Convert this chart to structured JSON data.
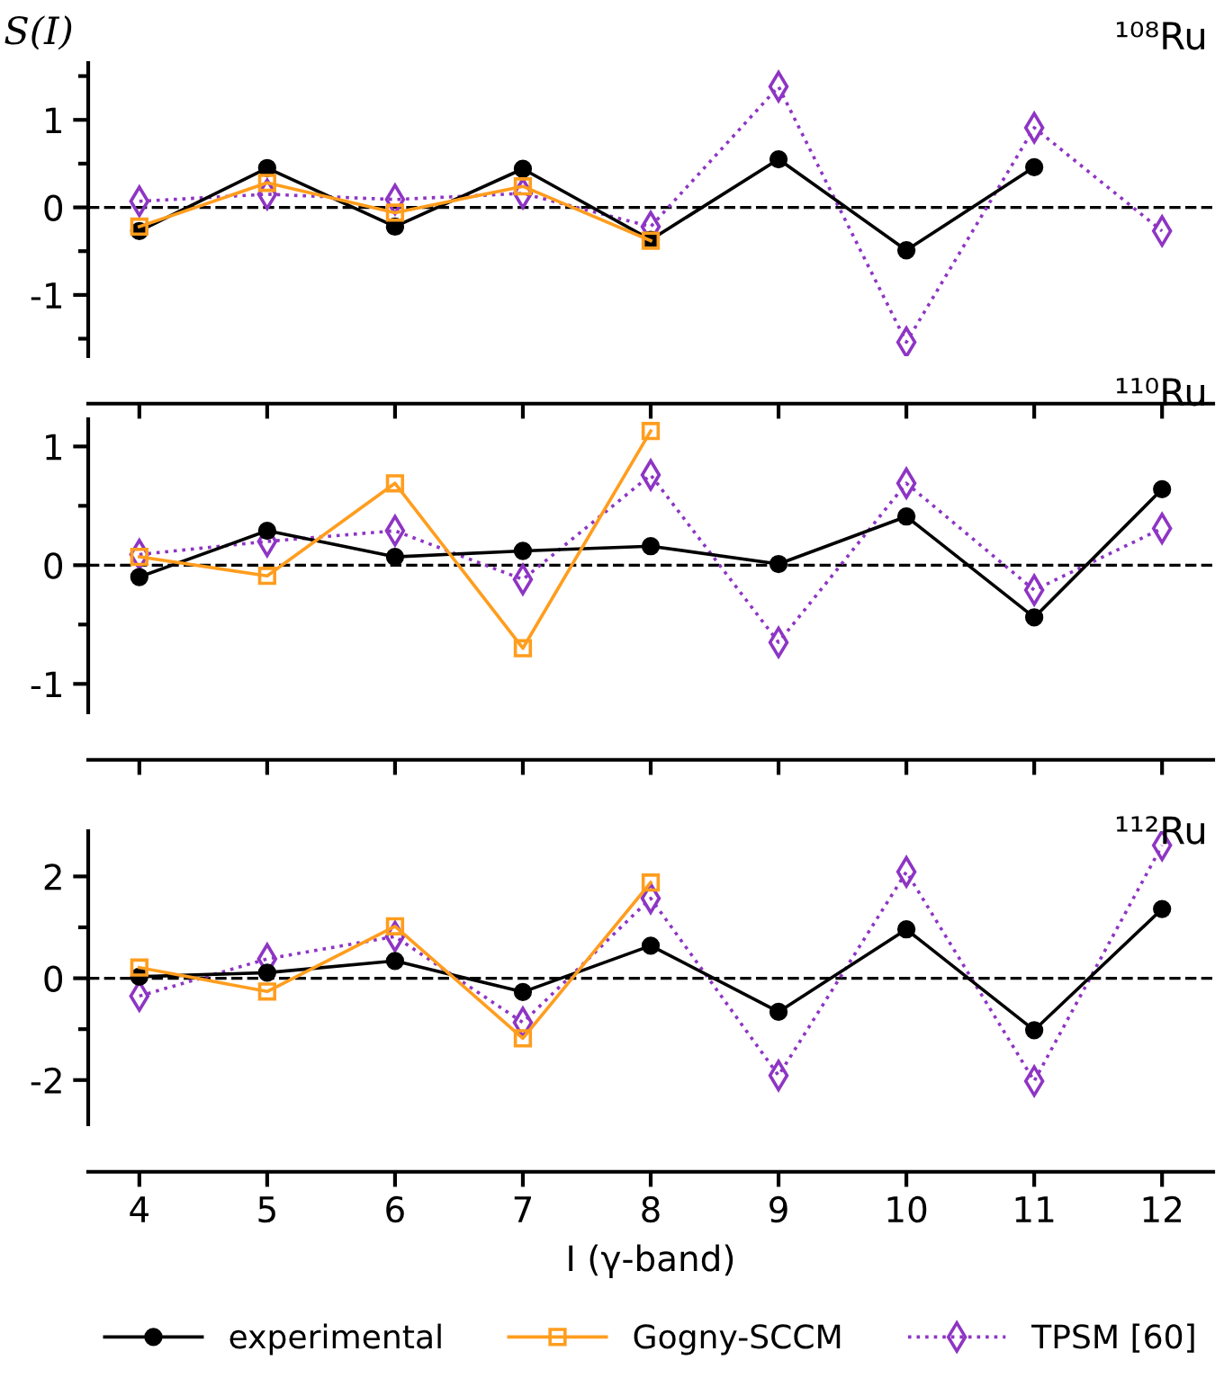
{
  "chart_data": [
    {
      "type": "line",
      "ylabel": "S(I)",
      "annotations": [
        "¹⁰⁸Ru"
      ],
      "x": [
        4,
        5,
        6,
        7,
        8,
        9,
        10,
        11,
        12
      ],
      "xlim": [
        3.6,
        12.4
      ],
      "xticks": [
        4,
        5,
        6,
        7,
        8,
        9,
        10,
        11,
        12
      ],
      "ylim": [
        -1.7,
        1.65
      ],
      "yticks": [
        {
          "value": -1.5,
          "label": null
        },
        -1,
        {
          "value": -0.5,
          "label": null
        },
        0,
        {
          "value": 0.5,
          "label": null
        },
        1,
        {
          "value": 1.5,
          "label": null
        }
      ],
      "tick_labels": "y",
      "grid": false,
      "legend": false,
      "ref_lines": [
        {
          "axis": "y",
          "value": 0,
          "color": "#000000",
          "line_style": "dashed"
        }
      ],
      "series": [
        {
          "color": "#000000",
          "marker": "circle",
          "line_style": "solid",
          "values": [
            -0.27,
            0.45,
            -0.22,
            0.44,
            -0.37,
            0.55,
            -0.49,
            0.46,
            null
          ]
        },
        {
          "color": "#ff9d1e",
          "marker": "square",
          "line_style": "solid",
          "values": [
            -0.22,
            0.28,
            -0.06,
            0.24,
            -0.38,
            null,
            null,
            null,
            null
          ]
        },
        {
          "color": "#8e35c4",
          "marker": "diamond",
          "line_style": "dotted",
          "values": [
            0.07,
            0.15,
            0.09,
            0.16,
            -0.22,
            1.38,
            -1.54,
            0.91,
            -0.27
          ]
        }
      ]
    },
    {
      "type": "line",
      "annotations": [
        "¹¹⁰Ru"
      ],
      "x": [
        4,
        5,
        6,
        7,
        8,
        9,
        10,
        11,
        12
      ],
      "xlim": [
        3.6,
        12.4
      ],
      "xticks": [
        4,
        5,
        6,
        7,
        8,
        9,
        10,
        11,
        12
      ],
      "ylim": [
        -1.24,
        1.23
      ],
      "yticks": [
        -1,
        {
          "value": -0.5,
          "label": null
        },
        0,
        {
          "value": 0.5,
          "label": null
        },
        1
      ],
      "tick_labels": "y",
      "grid": false,
      "legend": false,
      "ref_lines": [
        {
          "axis": "y",
          "value": 0,
          "color": "#000000",
          "line_style": "dashed"
        }
      ],
      "series": [
        {
          "color": "#000000",
          "marker": "circle",
          "line_style": "solid",
          "values": [
            -0.1,
            0.29,
            0.07,
            0.12,
            0.16,
            0.01,
            0.41,
            -0.44,
            0.64
          ]
        },
        {
          "color": "#ff9d1e",
          "marker": "square",
          "line_style": "solid",
          "values": [
            0.07,
            -0.09,
            0.69,
            -0.7,
            1.13,
            null,
            null,
            null,
            null
          ]
        },
        {
          "color": "#8e35c4",
          "marker": "diamond",
          "line_style": "dotted",
          "values": [
            0.09,
            0.2,
            0.29,
            -0.12,
            0.76,
            -0.65,
            0.69,
            -0.21,
            0.31
          ]
        }
      ]
    },
    {
      "type": "line",
      "xlabel": "I (γ-band)",
      "annotations": [
        "¹¹²Ru"
      ],
      "x": [
        4,
        5,
        6,
        7,
        8,
        9,
        10,
        11,
        12
      ],
      "xlim": [
        3.6,
        12.4
      ],
      "xticks": [
        4,
        5,
        6,
        7,
        8,
        9,
        10,
        11,
        12
      ],
      "ylim": [
        -2.87,
        2.89
      ],
      "yticks": [
        -2,
        {
          "value": -1,
          "label": null
        },
        0,
        {
          "value": 1,
          "label": null
        },
        2
      ],
      "grid": false,
      "legend": "bottom",
      "ref_lines": [
        {
          "axis": "y",
          "value": 0,
          "color": "#000000",
          "line_style": "dashed"
        }
      ],
      "series": [
        {
          "name": "experimental",
          "color": "#000000",
          "marker": "circle",
          "line_style": "solid",
          "values": [
            0.03,
            0.11,
            0.34,
            -0.27,
            0.64,
            -0.66,
            0.96,
            -1.02,
            1.36
          ]
        },
        {
          "name": "Gogny-SCCM",
          "color": "#ff9d1e",
          "marker": "square",
          "line_style": "solid",
          "values": [
            0.21,
            -0.26,
            1.02,
            -1.18,
            1.88,
            null,
            null,
            null,
            null
          ]
        },
        {
          "name": "TPSM [60]",
          "color": "#8e35c4",
          "marker": "diamond",
          "line_style": "dotted",
          "values": [
            -0.35,
            0.38,
            0.82,
            -0.87,
            1.57,
            -1.91,
            2.09,
            -2.02,
            2.61
          ]
        }
      ]
    }
  ]
}
